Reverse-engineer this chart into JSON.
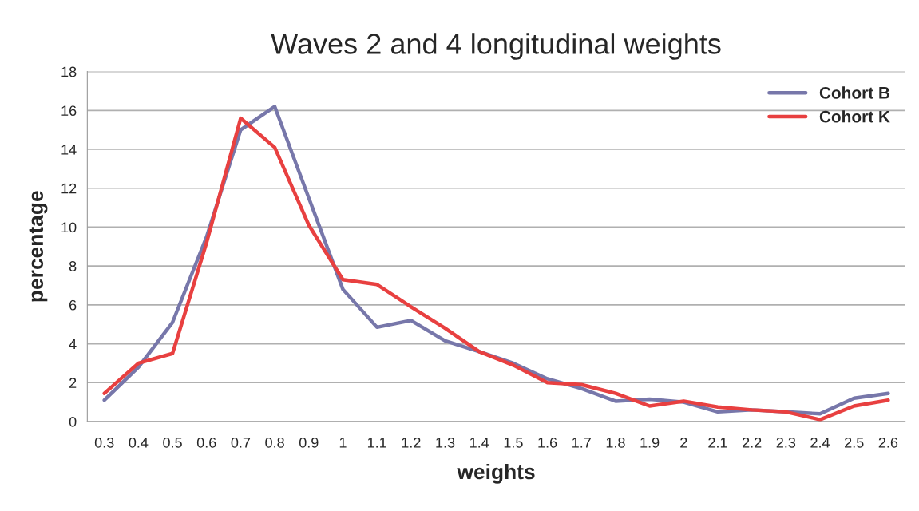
{
  "chart_data": {
    "type": "line",
    "title": "Waves 2 and 4 longitudinal weights",
    "xlabel": "weights",
    "ylabel": "percentage",
    "categories": [
      "0.3",
      "0.4",
      "0.5",
      "0.6",
      "0.7",
      "0.8",
      "0.9",
      "1",
      "1.1",
      "1.2",
      "1.3",
      "1.4",
      "1.5",
      "1.6",
      "1.7",
      "1.8",
      "1.9",
      "2",
      "2.1",
      "2.2",
      "2.3",
      "2.4",
      "2.5",
      "2.6"
    ],
    "series": [
      {
        "name": "Cohort B",
        "color": "#7777aa",
        "values": [
          1.1,
          2.8,
          5.1,
          9.5,
          15.0,
          16.2,
          11.5,
          6.8,
          4.85,
          5.2,
          4.15,
          3.6,
          3.0,
          2.2,
          1.7,
          1.05,
          1.15,
          1.0,
          0.5,
          0.6,
          0.5,
          0.4,
          1.2,
          1.45
        ]
      },
      {
        "name": "Cohort K",
        "color": "#e84040",
        "values": [
          1.45,
          3.0,
          3.5,
          9.2,
          15.6,
          14.1,
          10.1,
          7.3,
          7.05,
          5.9,
          4.8,
          3.6,
          2.9,
          2.0,
          1.9,
          1.45,
          0.8,
          1.05,
          0.75,
          0.6,
          0.5,
          0.1,
          0.8,
          1.1
        ]
      }
    ],
    "ylim": [
      0,
      18
    ],
    "yticks": [
      0,
      2,
      4,
      6,
      8,
      10,
      12,
      14,
      16,
      18
    ],
    "grid": "y",
    "legend": "top right",
    "marker": "none",
    "line_style": "solid"
  }
}
